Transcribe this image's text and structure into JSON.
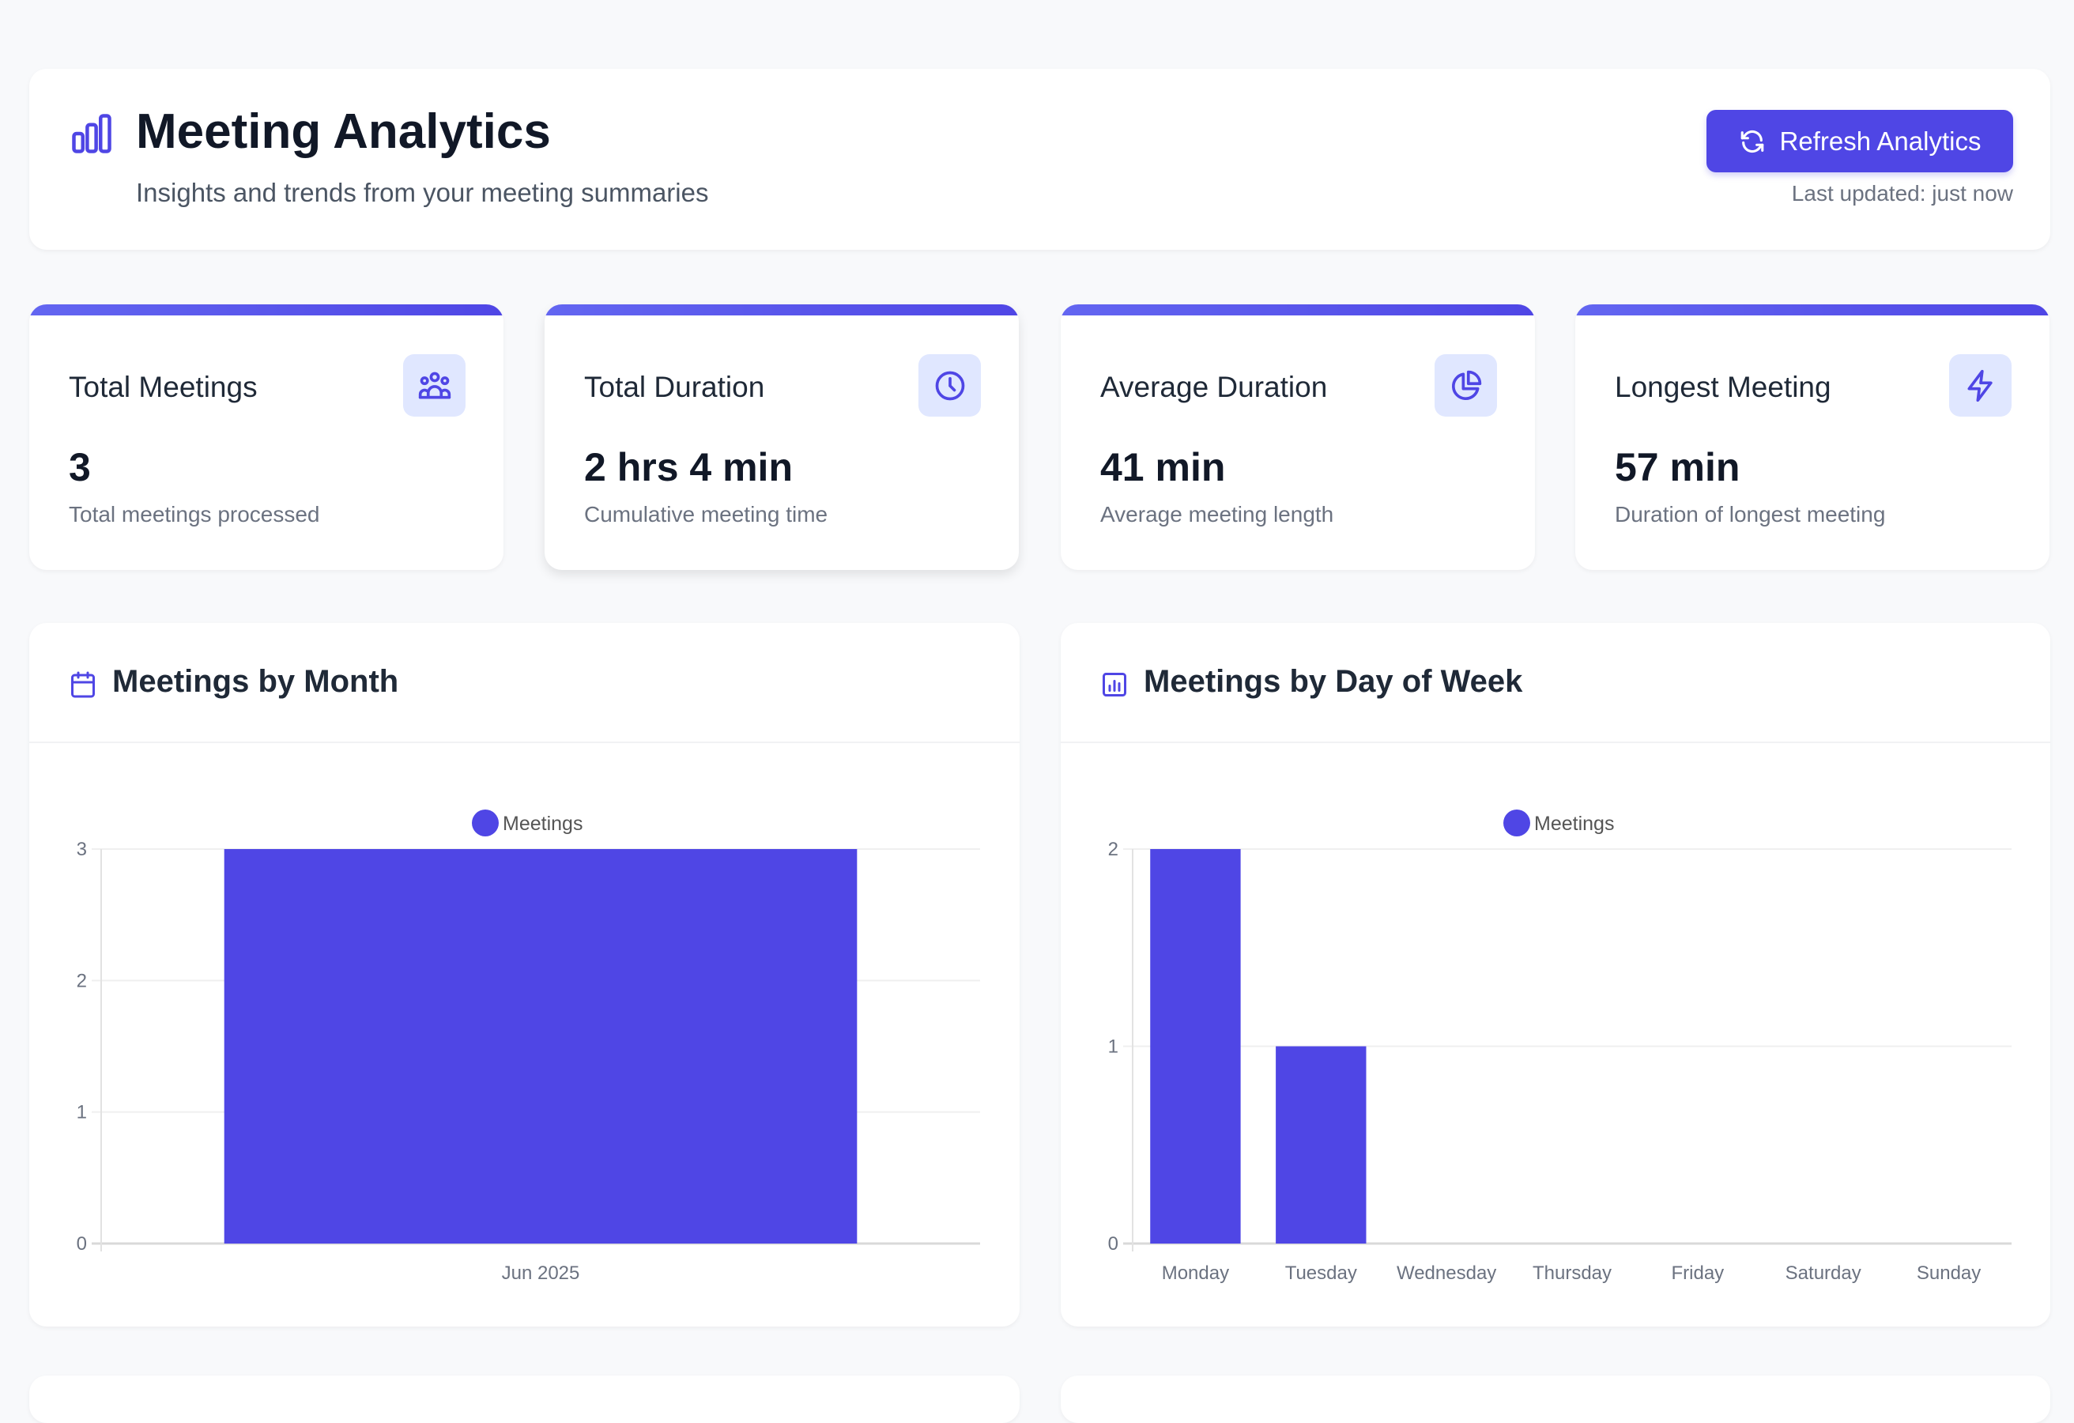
{
  "header": {
    "title": "Meeting Analytics",
    "subtitle": "Insights and trends from your meeting summaries",
    "refresh_label": "Refresh Analytics",
    "last_updated": "Last updated: just now",
    "icon": "bar-chart-icon"
  },
  "colors": {
    "accent": "#4f46e5",
    "icon_bg": "#e0e7ff",
    "background": "#f8f9fb"
  },
  "stats": [
    {
      "label": "Total Meetings",
      "value": "3",
      "desc": "Total meetings processed",
      "icon": "users-icon"
    },
    {
      "label": "Total Duration",
      "value": "2 hrs 4 min",
      "desc": "Cumulative meeting time",
      "icon": "clock-icon"
    },
    {
      "label": "Average Duration",
      "value": "41 min",
      "desc": "Average meeting length",
      "icon": "pie-chart-icon"
    },
    {
      "label": "Longest Meeting",
      "value": "57 min",
      "desc": "Duration of longest meeting",
      "icon": "lightning-icon"
    }
  ],
  "charts": [
    {
      "title": "Meetings by Month",
      "icon": "calendar-icon"
    },
    {
      "title": "Meetings by Day of Week",
      "icon": "bar-chart-square-icon"
    }
  ],
  "chart_data": [
    {
      "type": "bar",
      "categories": [
        "Jun 2025"
      ],
      "series": [
        {
          "name": "Meetings",
          "values": [
            3
          ]
        }
      ],
      "ylim": [
        0,
        3
      ],
      "yticks": [
        0,
        1,
        2,
        3
      ],
      "grid": true,
      "legend": "top-center",
      "color": "#4f46e5"
    },
    {
      "type": "bar",
      "categories": [
        "Monday",
        "Tuesday",
        "Wednesday",
        "Thursday",
        "Friday",
        "Saturday",
        "Sunday"
      ],
      "series": [
        {
          "name": "Meetings",
          "values": [
            2,
            1,
            0,
            0,
            0,
            0,
            0
          ]
        }
      ],
      "ylim": [
        0,
        2
      ],
      "yticks": [
        0,
        1,
        2
      ],
      "grid": true,
      "legend": "top-center",
      "color": "#4f46e5"
    }
  ]
}
